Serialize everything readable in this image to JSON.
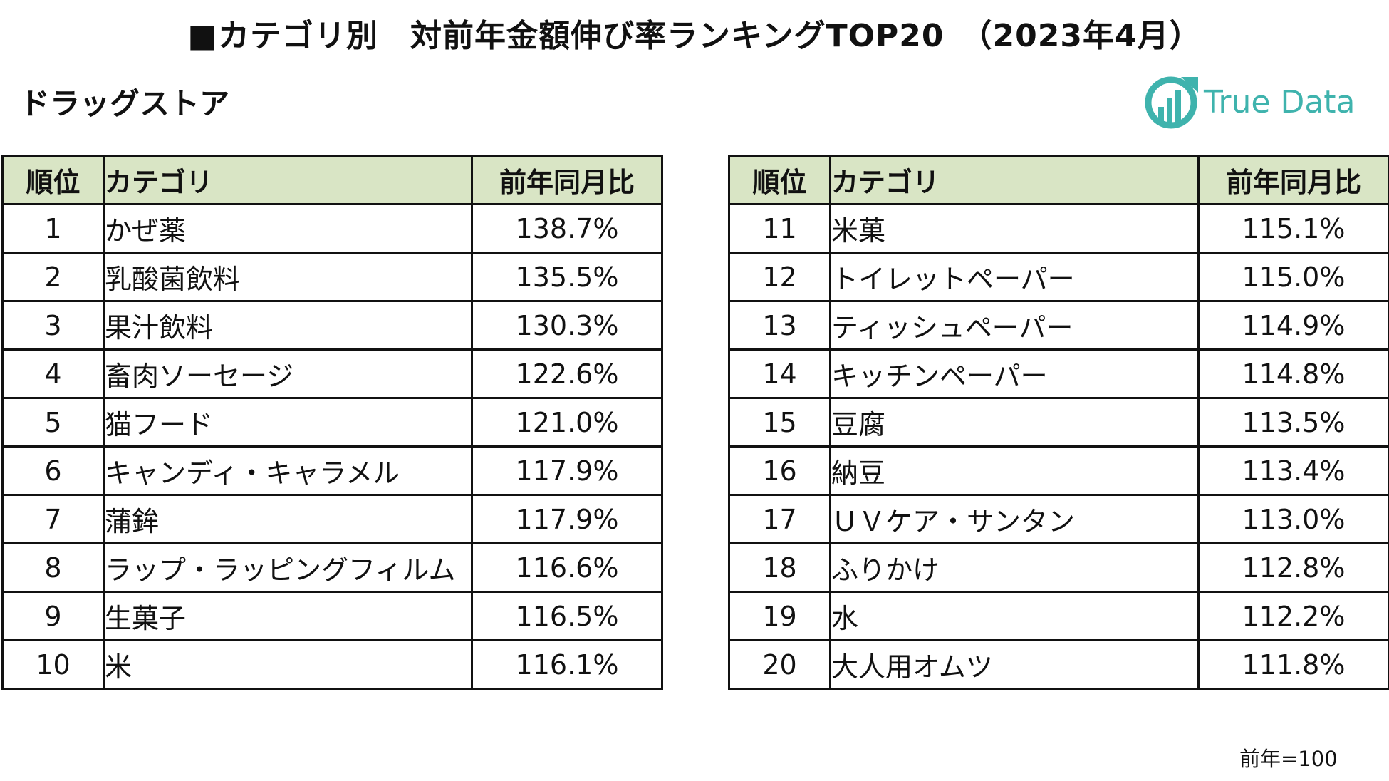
{
  "title": "■カテゴリ別　対前年金額伸び率ランキングTOP20　（2023年4月）",
  "subtitle": "ドラッグストア",
  "logo": {
    "text": "True Data",
    "icon": "bar-chart-circle-icon",
    "color": "#3fb3ad"
  },
  "table": {
    "headers": {
      "rank": "順位",
      "category": "カテゴリ",
      "value": "前年同月比"
    },
    "header_color": "#d9e5c5",
    "left_rows": [
      {
        "rank": "1",
        "category": "かぜ薬",
        "value": "138.7%"
      },
      {
        "rank": "2",
        "category": "乳酸菌飲料",
        "value": "135.5%"
      },
      {
        "rank": "3",
        "category": "果汁飲料",
        "value": "130.3%"
      },
      {
        "rank": "4",
        "category": "畜肉ソーセージ",
        "value": "122.6%"
      },
      {
        "rank": "5",
        "category": "猫フード",
        "value": "121.0%"
      },
      {
        "rank": "6",
        "category": "キャンディ・キャラメル",
        "value": "117.9%"
      },
      {
        "rank": "7",
        "category": "蒲鉾",
        "value": "117.9%"
      },
      {
        "rank": "8",
        "category": "ラップ・ラッピングフィルム",
        "value": "116.6%"
      },
      {
        "rank": "9",
        "category": "生菓子",
        "value": "116.5%"
      },
      {
        "rank": "10",
        "category": "米",
        "value": "116.1%"
      }
    ],
    "right_rows": [
      {
        "rank": "11",
        "category": "米菓",
        "value": "115.1%"
      },
      {
        "rank": "12",
        "category": "トイレットペーパー",
        "value": "115.0%"
      },
      {
        "rank": "13",
        "category": "ティッシュペーパー",
        "value": "114.9%"
      },
      {
        "rank": "14",
        "category": "キッチンペーパー",
        "value": "114.8%"
      },
      {
        "rank": "15",
        "category": "豆腐",
        "value": "113.5%"
      },
      {
        "rank": "16",
        "category": "納豆",
        "value": "113.4%"
      },
      {
        "rank": "17",
        "category": "ＵＶケア・サンタン",
        "value": "113.0%"
      },
      {
        "rank": "18",
        "category": "ふりかけ",
        "value": "112.8%"
      },
      {
        "rank": "19",
        "category": "水",
        "value": "112.2%"
      },
      {
        "rank": "20",
        "category": "大人用オムツ",
        "value": "111.8%"
      }
    ]
  },
  "note": "前年=100"
}
